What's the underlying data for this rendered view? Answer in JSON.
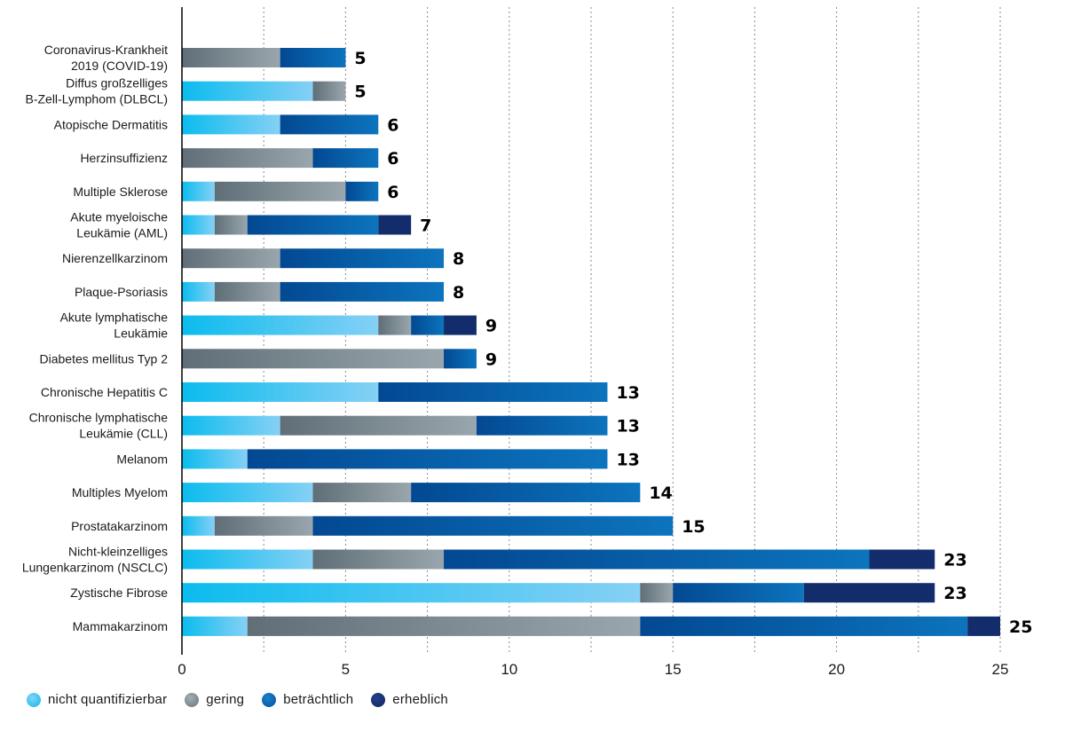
{
  "chart_data": {
    "type": "bar",
    "orientation": "horizontal",
    "stacked": true,
    "title": "",
    "xlabel": "",
    "ylabel": "",
    "xlim": [
      0,
      25
    ],
    "xticks": [
      0,
      5,
      10,
      15,
      20,
      25
    ],
    "grid": "vertical dotted",
    "legend_position": "bottom-left",
    "categories": [
      "Coronavirus-Krankheit\n2019 (COVID-19)",
      "Diffus großzelliges\nB-Zell-Lymphom (DLBCL)",
      "Atopische Dermatitis",
      "Herzinsuffizienz",
      "Multiple Sklerose",
      "Akute myeloische\nLeukämie (AML)",
      "Nierenzellkarzinom",
      "Plaque-Psoriasis",
      "Akute lymphatische\nLeukämie",
      "Diabetes mellitus Typ 2",
      "Chronische Hepatitis C",
      "Chronische lymphatische\nLeukämie (CLL)",
      "Melanom",
      "Multiples Myelom",
      "Prostatakarzinom",
      "Nicht-kleinzelliges\nLungenkarzinom (NSCLC)",
      "Zystische Fibrose",
      "Mammakarzinom"
    ],
    "series": [
      {
        "name": "nicht quantifizierbar",
        "color_start": "#0bbcee",
        "color_end": "#86d0f5",
        "values": [
          0,
          4,
          3,
          0,
          1,
          1,
          0,
          1,
          6,
          0,
          6,
          3,
          2,
          4,
          1,
          4,
          14,
          2
        ]
      },
      {
        "name": "gering",
        "color_start": "#5f6e77",
        "color_end": "#9aa6ad",
        "values": [
          3,
          1,
          0,
          4,
          4,
          1,
          3,
          2,
          1,
          8,
          0,
          6,
          0,
          3,
          3,
          4,
          1,
          12
        ]
      },
      {
        "name": "beträchtlich",
        "color_start": "#034892",
        "color_end": "#0c74bd",
        "values": [
          2,
          0,
          3,
          2,
          1,
          4,
          5,
          5,
          1,
          1,
          7,
          4,
          11,
          7,
          11,
          13,
          4,
          10
        ]
      },
      {
        "name": "erheblich",
        "color_start": "#132d6c",
        "color_end": "#132d6c",
        "values": [
          0,
          0,
          0,
          0,
          0,
          1,
          0,
          0,
          1,
          0,
          0,
          0,
          0,
          0,
          0,
          2,
          4,
          1
        ]
      }
    ],
    "totals": [
      5,
      5,
      6,
      6,
      6,
      7,
      8,
      8,
      9,
      9,
      13,
      13,
      13,
      14,
      15,
      23,
      23,
      25
    ]
  },
  "legend": [
    {
      "label": "nicht quantifizierbar",
      "color": "#2cbdf0"
    },
    {
      "label": "gering",
      "color": "#7d8a92"
    },
    {
      "label": "beträchtlich",
      "color": "#0a67b0"
    },
    {
      "label": "erheblich",
      "color": "#132d6c"
    }
  ]
}
